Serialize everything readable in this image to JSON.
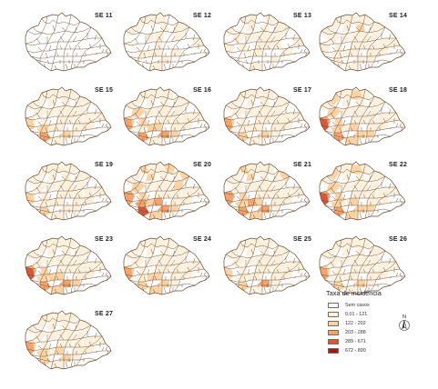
{
  "figure": {
    "panels": [
      {
        "label": "SE 11",
        "fills": [
          0,
          0,
          0,
          0,
          0,
          0,
          0,
          0,
          0,
          0,
          0,
          0,
          0,
          0,
          0,
          0,
          0,
          0,
          0,
          0,
          0,
          0,
          0,
          0,
          0,
          0,
          0,
          0,
          0,
          0,
          0,
          0
        ]
      },
      {
        "label": "SE 12",
        "fills": [
          1,
          1,
          0,
          1,
          1,
          0,
          1,
          0,
          1,
          1,
          0,
          1,
          1,
          0,
          1,
          1,
          1,
          0,
          1,
          0,
          1,
          0,
          1,
          1,
          0,
          1,
          0,
          1,
          1,
          0,
          0,
          1
        ]
      },
      {
        "label": "SE 13",
        "fills": [
          1,
          1,
          1,
          0,
          1,
          1,
          1,
          1,
          0,
          1,
          1,
          1,
          1,
          1,
          0,
          1,
          1,
          1,
          1,
          0,
          1,
          1,
          1,
          0,
          1,
          1,
          1,
          0,
          1,
          1,
          0,
          1
        ]
      },
      {
        "label": "SE 14",
        "fills": [
          1,
          1,
          1,
          1,
          1,
          1,
          1,
          1,
          1,
          2,
          1,
          1,
          1,
          1,
          1,
          1,
          1,
          1,
          1,
          1,
          1,
          1,
          1,
          1,
          1,
          1,
          1,
          1,
          1,
          1,
          1,
          1
        ]
      },
      {
        "label": "SE 15",
        "fills": [
          1,
          1,
          2,
          1,
          1,
          1,
          1,
          1,
          1,
          1,
          1,
          1,
          1,
          1,
          2,
          1,
          1,
          1,
          1,
          3,
          1,
          1,
          1,
          2,
          1,
          1,
          1,
          1,
          1,
          1,
          1,
          1
        ]
      },
      {
        "label": "SE 16",
        "fills": [
          2,
          1,
          3,
          1,
          1,
          2,
          1,
          1,
          1,
          1,
          2,
          1,
          1,
          1,
          1,
          2,
          1,
          1,
          1,
          3,
          2,
          1,
          1,
          3,
          1,
          1,
          2,
          1,
          1,
          1,
          1,
          1
        ]
      },
      {
        "label": "SE 17",
        "fills": [
          2,
          1,
          3,
          1,
          1,
          1,
          1,
          1,
          1,
          1,
          1,
          1,
          1,
          1,
          1,
          1,
          1,
          1,
          1,
          2,
          1,
          1,
          1,
          2,
          1,
          1,
          1,
          1,
          1,
          1,
          1,
          1
        ]
      },
      {
        "label": "SE 18",
        "fills": [
          3,
          1,
          4,
          2,
          1,
          2,
          1,
          1,
          2,
          1,
          2,
          1,
          1,
          1,
          2,
          1,
          1,
          1,
          1,
          3,
          2,
          1,
          1,
          2,
          1,
          1,
          2,
          1,
          2,
          1,
          1,
          1
        ]
      },
      {
        "label": "SE 19",
        "fills": [
          1,
          1,
          2,
          1,
          1,
          1,
          1,
          1,
          1,
          1,
          1,
          1,
          1,
          1,
          1,
          1,
          1,
          1,
          1,
          2,
          1,
          1,
          1,
          1,
          1,
          1,
          1,
          1,
          1,
          1,
          1,
          1
        ]
      },
      {
        "label": "SE 20",
        "fills": [
          3,
          1,
          3,
          1,
          2,
          2,
          1,
          2,
          1,
          1,
          2,
          1,
          1,
          2,
          3,
          2,
          1,
          1,
          1,
          4,
          3,
          1,
          2,
          3,
          1,
          2,
          2,
          1,
          2,
          1,
          1,
          1
        ]
      },
      {
        "label": "SE 21",
        "fills": [
          3,
          1,
          3,
          1,
          2,
          1,
          1,
          2,
          1,
          1,
          2,
          1,
          1,
          1,
          2,
          3,
          1,
          1,
          1,
          3,
          2,
          1,
          1,
          3,
          1,
          2,
          1,
          1,
          2,
          1,
          1,
          1
        ]
      },
      {
        "label": "SE 22",
        "fills": [
          3,
          1,
          4,
          2,
          1,
          2,
          1,
          1,
          2,
          1,
          2,
          1,
          1,
          1,
          2,
          1,
          1,
          1,
          1,
          3,
          2,
          1,
          1,
          2,
          1,
          1,
          2,
          1,
          2,
          1,
          1,
          1
        ]
      },
      {
        "label": "SE 23",
        "fills": [
          3,
          1,
          4,
          1,
          1,
          1,
          1,
          1,
          1,
          1,
          2,
          1,
          1,
          1,
          2,
          2,
          1,
          1,
          1,
          3,
          2,
          1,
          1,
          3,
          1,
          1,
          2,
          1,
          2,
          1,
          1,
          1
        ]
      },
      {
        "label": "SE 24",
        "fills": [
          2,
          1,
          3,
          1,
          1,
          1,
          1,
          1,
          1,
          1,
          1,
          1,
          1,
          1,
          1,
          2,
          1,
          1,
          1,
          2,
          2,
          1,
          1,
          2,
          1,
          1,
          1,
          1,
          2,
          1,
          1,
          1
        ]
      },
      {
        "label": "SE 25",
        "fills": [
          0,
          1,
          2,
          1,
          1,
          1,
          1,
          1,
          1,
          1,
          1,
          1,
          1,
          1,
          1,
          1,
          1,
          1,
          1,
          2,
          1,
          1,
          1,
          3,
          1,
          1,
          1,
          1,
          1,
          1,
          1,
          1
        ]
      },
      {
        "label": "SE 26",
        "fills": [
          2,
          1,
          3,
          1,
          1,
          1,
          1,
          1,
          1,
          1,
          1,
          1,
          1,
          1,
          1,
          1,
          1,
          1,
          1,
          2,
          1,
          1,
          1,
          2,
          1,
          1,
          1,
          1,
          1,
          1,
          1,
          1
        ]
      },
      {
        "label": "SE 27",
        "fills": [
          2,
          1,
          3,
          1,
          1,
          1,
          1,
          1,
          1,
          1,
          1,
          1,
          1,
          1,
          2,
          1,
          1,
          1,
          1,
          2,
          2,
          1,
          1,
          2,
          1,
          1,
          1,
          1,
          1,
          1,
          1,
          1
        ]
      }
    ]
  },
  "legend": {
    "title": "Taxa de incidência",
    "classes": [
      {
        "label": "Sem casos",
        "color": "#ffffff"
      },
      {
        "label": "0,01 - 121",
        "color": "#fdf0dc"
      },
      {
        "label": "122 - 202",
        "color": "#fbd3a4"
      },
      {
        "label": "203 - 288",
        "color": "#f3a36b"
      },
      {
        "label": "289 - 671",
        "color": "#d8573a"
      },
      {
        "label": "672 - 890",
        "color": "#9e1a12"
      }
    ]
  },
  "north_arrow": {
    "letter": "N"
  },
  "colors": {
    "boundary": "#6b4a2e",
    "label": "#222222"
  }
}
